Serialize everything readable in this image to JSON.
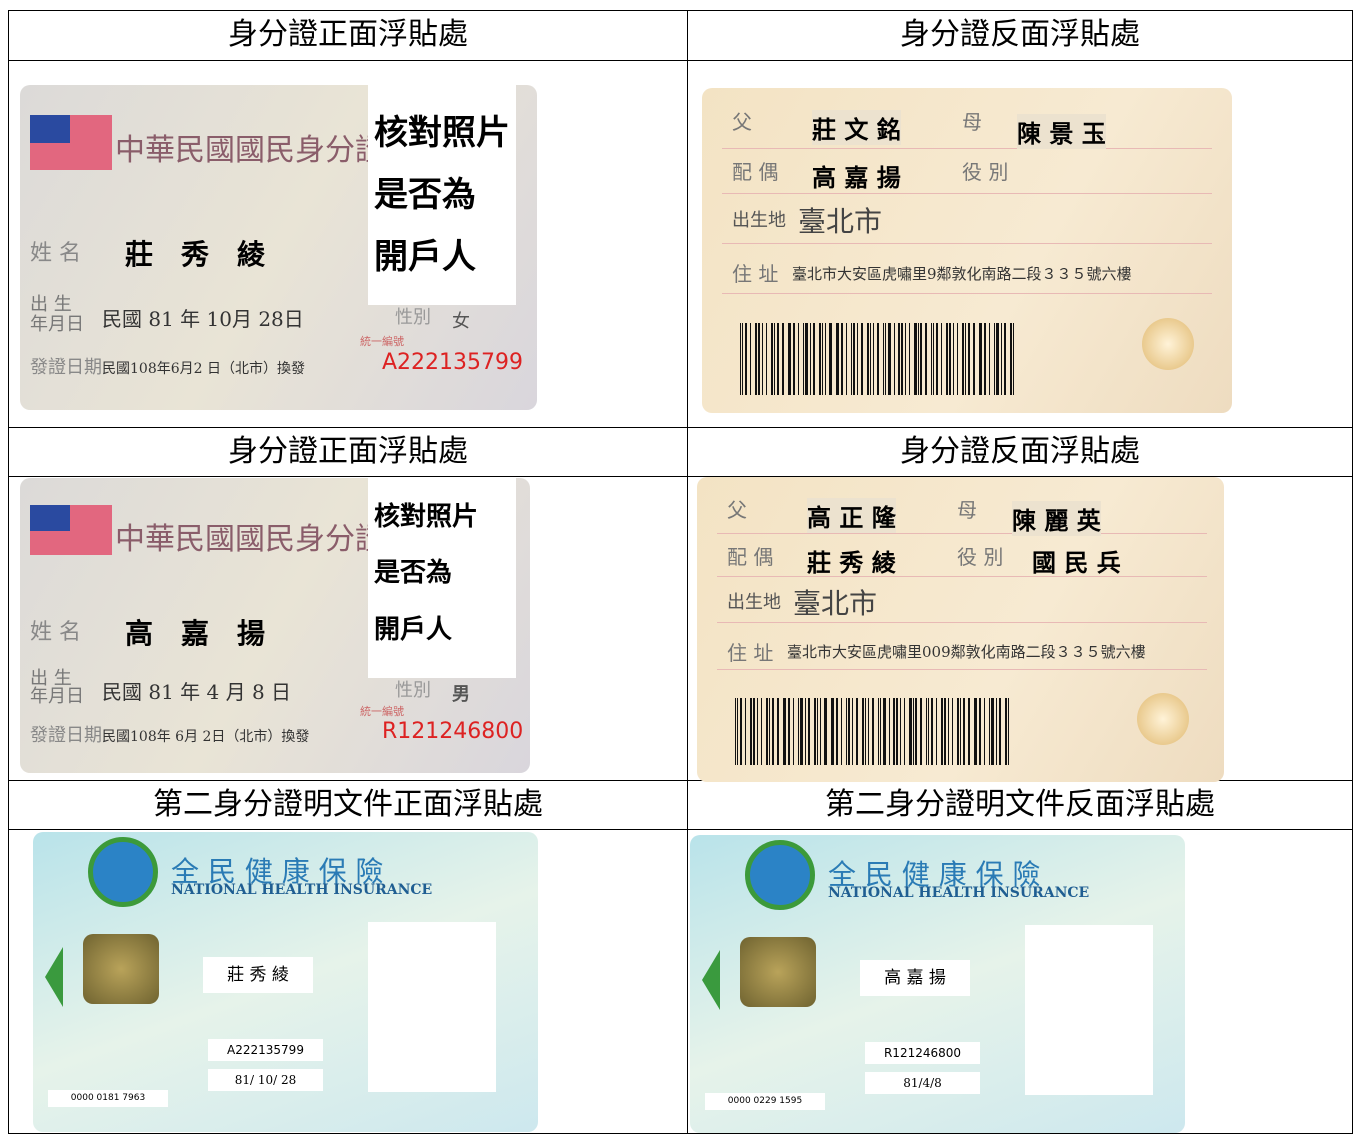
{
  "headers": [
    [
      "身分證正面浮貼處",
      "身分證反面浮貼處"
    ],
    [
      "身分證正面浮貼處",
      "身分證反面浮貼處"
    ],
    [
      "第二身分證明文件正面浮貼處",
      "第二身分證明文件反面浮貼處"
    ]
  ],
  "fronts": [
    {
      "title": "中華民國國民身分證",
      "note": [
        "核對照片",
        "是否為",
        "開戶人"
      ],
      "name_label": "姓 名",
      "name": "莊　秀　綾",
      "birth_label": [
        "出 生",
        "年月日"
      ],
      "birth": "民國 81 年 10月 28日",
      "sex_label": "性別",
      "sex": "女",
      "issue_label": "發證日期",
      "issue": "民國108年6月2 日（北市）換發",
      "id_label": "統一編號",
      "id": "A222135799"
    },
    {
      "title": "中華民國國民身分證",
      "note": [
        "核對照片",
        "是否為",
        "開戶人"
      ],
      "name_label": "姓 名",
      "name": "高　嘉　揚",
      "birth_label": [
        "出 生",
        "年月日"
      ],
      "birth": "民國 81 年 4 月 8 日",
      "sex_label": "性別",
      "sex": "男",
      "issue_label": "發證日期",
      "issue": "民國108年 6月 2日（北市）換發",
      "id_label": "統一編號",
      "id": "R121246800"
    }
  ],
  "backs": [
    {
      "father_label": "父",
      "father": "莊 文 銘",
      "mother_label": "母",
      "mother": "陳 景 玉",
      "spouse_label": "配 偶",
      "spouse": "高 嘉 揚",
      "service_label": "役 別",
      "birthplace_label": "出生地",
      "birthplace": "臺北市",
      "address_label": "住 址",
      "address": "臺北市大安區虎嘯里9鄰敦化南路二段３３５號六樓"
    },
    {
      "father_label": "父",
      "father": "高 正 隆",
      "mother_label": "母",
      "mother": "陳 麗 英",
      "spouse_label": "配 偶",
      "spouse": "莊 秀 綾",
      "service_label": "役 別",
      "service": "國 民 兵",
      "birthplace_label": "出生地",
      "birthplace": "臺北市",
      "address_label": "住 址",
      "address": "臺北市大安區虎嘯里009鄰敦化南路二段３３５號六樓"
    }
  ],
  "nhi": [
    {
      "title": "全 民 健 康 保 險",
      "subtitle": "NATIONAL HEALTH INSURANCE",
      "name": "莊 秀 綾",
      "id": "A222135799",
      "birth": "81/ 10/ 28",
      "number": "0000 0181 7963"
    },
    {
      "title": "全 民 健 康 保 險",
      "subtitle": "NATIONAL HEALTH INSURANCE",
      "name": "高 嘉 揚",
      "id": "R121246800",
      "birth": "81/4/8",
      "number": "0000 0229 1595"
    }
  ]
}
